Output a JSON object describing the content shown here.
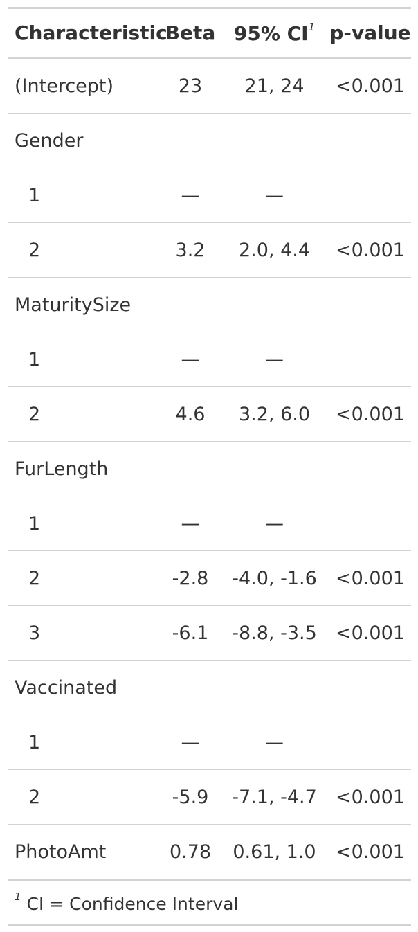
{
  "table": {
    "headers": {
      "characteristic": "Characteristic",
      "beta": "Beta",
      "ci": "95% CI",
      "ci_footnote_mark": "1",
      "p_value": "p-value"
    },
    "rows": [
      {
        "label": "(Intercept)",
        "beta": "23",
        "ci": "21, 24",
        "p": "<0.001"
      },
      {
        "label": "Gender",
        "beta": "",
        "ci": "",
        "p": ""
      },
      {
        "label": "1",
        "beta": "—",
        "ci": "—",
        "p": ""
      },
      {
        "label": "2",
        "beta": "3.2",
        "ci": "2.0, 4.4",
        "p": "<0.001"
      },
      {
        "label": "MaturitySize",
        "beta": "",
        "ci": "",
        "p": ""
      },
      {
        "label": "1",
        "beta": "—",
        "ci": "—",
        "p": ""
      },
      {
        "label": "2",
        "beta": "4.6",
        "ci": "3.2, 6.0",
        "p": "<0.001"
      },
      {
        "label": "FurLength",
        "beta": "",
        "ci": "",
        "p": ""
      },
      {
        "label": "1",
        "beta": "—",
        "ci": "—",
        "p": ""
      },
      {
        "label": "2",
        "beta": "-2.8",
        "ci": "-4.0, -1.6",
        "p": "<0.001"
      },
      {
        "label": "3",
        "beta": "-6.1",
        "ci": "-8.8, -3.5",
        "p": "<0.001"
      },
      {
        "label": "Vaccinated",
        "beta": "",
        "ci": "",
        "p": ""
      },
      {
        "label": "1",
        "beta": "—",
        "ci": "—",
        "p": ""
      },
      {
        "label": "2",
        "beta": "-5.9",
        "ci": "-7.1, -4.7",
        "p": "<0.001"
      },
      {
        "label": "PhotoAmt",
        "beta": "0.78",
        "ci": "0.61, 1.0",
        "p": "<0.001"
      }
    ],
    "footnote": {
      "mark": "1",
      "text": "CI = Confidence Interval"
    }
  }
}
